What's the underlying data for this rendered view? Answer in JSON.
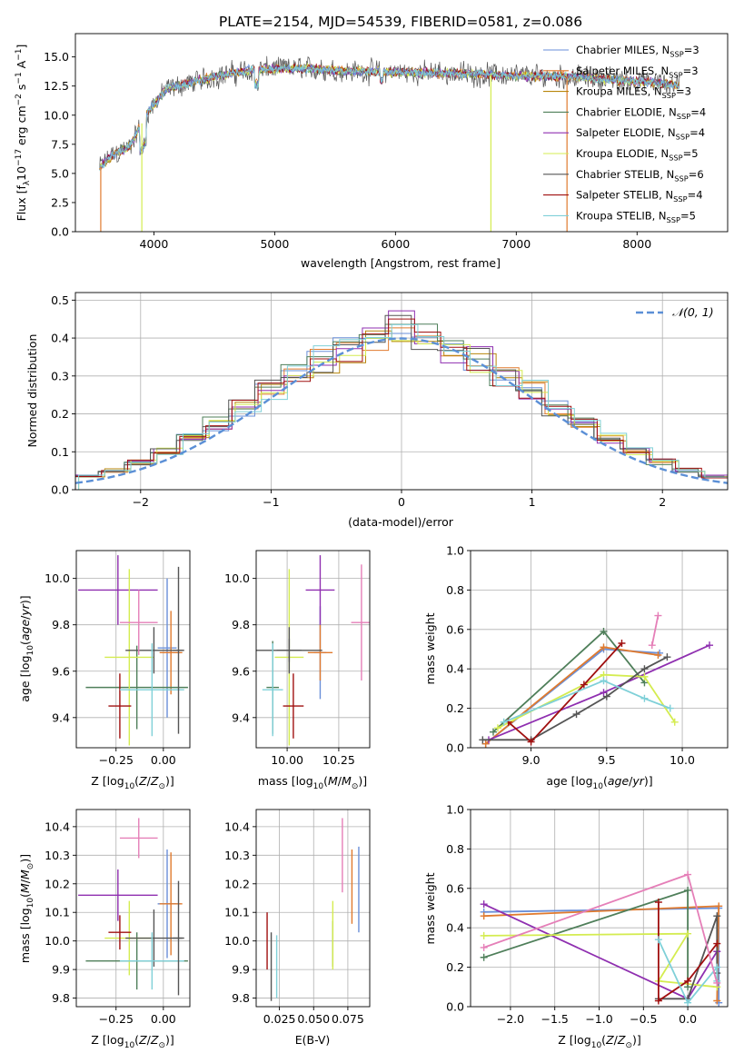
{
  "figure_title": "PLATE=2154, MJD=54539, FIBERID=0581, z=0.086",
  "colors": {
    "Chabrier MILES": "#6a8fd8",
    "Salpeter MILES": "#e07a2e",
    "Kroupa MILES": "#b8860b",
    "Chabrier ELODIE": "#4f7f5a",
    "Salpeter ELODIE": "#8f2fb0",
    "Kroupa ELODIE": "#d4ec50",
    "Chabrier STELIB": "#555555",
    "Salpeter STELIB": "#a01010",
    "Kroupa STELIB": "#7fd0d8",
    "Extra": "#e57fb8"
  },
  "chart_data": [
    {
      "id": "spectrum",
      "type": "line",
      "title": "PLATE=2154, MJD=54539, FIBERID=0581, z=0.086",
      "xlabel": "wavelength [Angstrom, rest frame]",
      "ylabel": "Flux [f",
      "ylabel_parts": [
        "Flux [f",
        "λ",
        "10",
        "−17",
        " erg cm",
        "−2",
        " s",
        "−1",
        " A",
        "−1",
        "]"
      ],
      "xlim": [
        3350,
        8750
      ],
      "ylim": [
        0,
        17
      ],
      "xticks": [
        4000,
        5000,
        6000,
        7000,
        8000
      ],
      "yticks": [
        0.0,
        2.5,
        5.0,
        7.5,
        10.0,
        12.5,
        15.0
      ],
      "ytick_labels": [
        "0.0",
        "2.5",
        "5.0",
        "7.5",
        "10.0",
        "12.5",
        "15.0"
      ],
      "continuum_anchor_wavelength": [
        3550,
        3650,
        3800,
        3950,
        4100,
        4300,
        4500,
        4700,
        5000,
        5300,
        5600,
        6000,
        6500,
        7000,
        7500,
        8000,
        8350
      ],
      "continuum_anchor_flux": [
        5.5,
        6.5,
        7.3,
        10.3,
        12.2,
        12.8,
        13.3,
        13.7,
        14.0,
        14.0,
        13.8,
        13.7,
        13.6,
        13.4,
        13.3,
        12.9,
        12.6
      ],
      "legend_position": "upper-right",
      "legend": [
        {
          "name": "Chabrier MILES",
          "label": "Chabrier MILES, N",
          "nssp": "=3"
        },
        {
          "name": "Salpeter MILES",
          "label": "Salpeter MILES, N",
          "nssp": "=3"
        },
        {
          "name": "Kroupa MILES",
          "label": "Kroupa MILES, N",
          "nssp": "=3"
        },
        {
          "name": "Chabrier ELODIE",
          "label": "Chabrier ELODIE, N",
          "nssp": "=4"
        },
        {
          "name": "Salpeter ELODIE",
          "label": "Salpeter ELODIE, N",
          "nssp": "=4"
        },
        {
          "name": "Kroupa ELODIE",
          "label": "Kroupa ELODIE, N",
          "nssp": "=5"
        },
        {
          "name": "Chabrier STELIB",
          "label": "Chabrier STELIB, N",
          "nssp": "=6"
        },
        {
          "name": "Salpeter STELIB",
          "label": "Salpeter STELIB, N",
          "nssp": "=4"
        },
        {
          "name": "Kroupa STELIB",
          "label": "Kroupa STELIB, N",
          "nssp": "=5"
        }
      ],
      "legend_subscript": "SSP",
      "dropouts": [
        {
          "series": "Salpeter MILES",
          "x": 3560
        },
        {
          "series": "Kroupa ELODIE",
          "x": 3900
        },
        {
          "series": "Kroupa ELODIE",
          "x": 6790
        },
        {
          "series": "Salpeter MILES",
          "x": 7420
        }
      ]
    },
    {
      "id": "residuals",
      "type": "line",
      "xlabel": "(data-model)/error",
      "ylabel": "Normed distribution",
      "xlim": [
        -2.5,
        2.5
      ],
      "ylim": [
        0,
        0.52
      ],
      "xticks": [
        -2,
        -1,
        0,
        1,
        2
      ],
      "xtick_labels": [
        "−2",
        "−1",
        "0",
        "1",
        "2"
      ],
      "yticks": [
        0.0,
        0.1,
        0.2,
        0.3,
        0.4,
        0.5
      ],
      "ytick_labels": [
        "0.0",
        "0.1",
        "0.2",
        "0.3",
        "0.4",
        "0.5"
      ],
      "bin_edges": [
        -2.5,
        -2.3,
        -2.1,
        -1.9,
        -1.7,
        -1.5,
        -1.3,
        -1.1,
        -0.9,
        -0.7,
        -0.5,
        -0.3,
        -0.1,
        0.1,
        0.3,
        0.5,
        0.7,
        0.9,
        1.1,
        1.3,
        1.5,
        1.7,
        1.9,
        2.1,
        2.3,
        2.5
      ],
      "gaussian_label": "𝒩(0, 1)",
      "gaussian": {
        "name": "N(0,1)",
        "mean": 0,
        "sigma": 1
      },
      "legend_position": "upper-right"
    },
    {
      "id": "age_vs_Z",
      "type": "scatter",
      "xlabel": "Z [log",
      "ylabel": "age  [log",
      "xlim": [
        -0.46,
        0.14
      ],
      "ylim": [
        9.27,
        10.12
      ],
      "xticks": [
        -0.25,
        0.0
      ],
      "xtick_labels": [
        "−0.25",
        "0.00"
      ],
      "yticks": [
        9.4,
        9.6,
        9.8,
        10.0
      ],
      "ytick_labels": [
        "9.4",
        "9.6",
        "9.8",
        "10.0"
      ],
      "points": [
        {
          "series": "Chabrier MILES",
          "x": 0.02,
          "y": 9.7,
          "xerr": 0.05,
          "yerr": 0.3
        },
        {
          "series": "Salpeter MILES",
          "x": 0.04,
          "y": 9.68,
          "xerr": 0.06,
          "yerr": 0.18
        },
        {
          "series": "Chabrier ELODIE",
          "x": -0.14,
          "y": 9.53,
          "xerr": 0.27,
          "yerr": 0.18
        },
        {
          "series": "Salpeter ELODIE",
          "x": -0.24,
          "y": 9.95,
          "xerr": 0.21,
          "yerr": 0.15
        },
        {
          "series": "Kroupa ELODIE",
          "x": -0.18,
          "y": 9.66,
          "xerr": 0.13,
          "yerr": 0.38
        },
        {
          "series": "Chabrier STELIB",
          "x": -0.05,
          "y": 9.69,
          "xerr": 0.15,
          "yerr": 0.1
        },
        {
          "series": "Salpeter STELIB",
          "x": -0.23,
          "y": 9.45,
          "xerr": 0.06,
          "yerr": 0.14
        },
        {
          "series": "Kroupa STELIB",
          "x": -0.06,
          "y": 9.52,
          "xerr": 0.17,
          "yerr": 0.2
        },
        {
          "series": "Extra",
          "x": -0.13,
          "y": 9.81,
          "xerr": 0.1,
          "yerr": 0.14
        },
        {
          "series": "Chabrier STELIB",
          "x": 0.08,
          "y": 9.69,
          "xerr": 0.03,
          "yerr": 0.36
        }
      ]
    },
    {
      "id": "age_vs_mass",
      "type": "scatter",
      "xlabel": "mass [log",
      "xlim": [
        9.85,
        10.4
      ],
      "ylim": [
        9.27,
        10.12
      ],
      "xticks": [
        10.0,
        10.25
      ],
      "xtick_labels": [
        "10.00",
        "10.25"
      ],
      "yticks": [
        9.4,
        9.6,
        9.8,
        10.0
      ],
      "ytick_labels": [
        "9.4",
        "9.6",
        "9.8",
        "10.0"
      ],
      "points": [
        {
          "series": "Chabrier MILES",
          "x": 10.16,
          "y": 9.68,
          "xerr": 0.03,
          "yerr": 0.2
        },
        {
          "series": "Salpeter MILES",
          "x": 10.16,
          "y": 9.68,
          "xerr": 0.06,
          "yerr": 0.12
        },
        {
          "series": "Chabrier ELODIE",
          "x": 9.93,
          "y": 9.53,
          "xerr": 0.03,
          "yerr": 0.2
        },
        {
          "series": "Salpeter ELODIE",
          "x": 10.16,
          "y": 9.95,
          "xerr": 0.07,
          "yerr": 0.15
        },
        {
          "series": "Kroupa ELODIE",
          "x": 10.01,
          "y": 9.66,
          "xerr": 0.07,
          "yerr": 0.38
        },
        {
          "series": "Chabrier STELIB",
          "x": 10.01,
          "y": 9.69,
          "xerr": 0.16,
          "yerr": 0.1
        },
        {
          "series": "Salpeter STELIB",
          "x": 10.03,
          "y": 9.45,
          "xerr": 0.05,
          "yerr": 0.14
        },
        {
          "series": "Kroupa STELIB",
          "x": 9.93,
          "y": 9.52,
          "xerr": 0.05,
          "yerr": 0.2
        },
        {
          "series": "Extra",
          "x": 10.36,
          "y": 9.81,
          "xerr": 0.05,
          "yerr": 0.25
        },
        {
          "series": "Chabrier STELIB",
          "x": 10.01,
          "y": 9.69,
          "xerr": 0.06,
          "yerr": 0.05
        }
      ]
    },
    {
      "id": "weight_vs_age",
      "type": "line",
      "xlabel": "age  [log",
      "ylabel": "mass weight",
      "xlim": [
        8.6,
        10.3
      ],
      "ylim": [
        0,
        1
      ],
      "xticks": [
        9.0,
        9.5,
        10.0
      ],
      "xtick_labels": [
        "9.0",
        "9.5",
        "10.0"
      ],
      "yticks": [
        0.0,
        0.2,
        0.4,
        0.6,
        0.8,
        1.0
      ],
      "ytick_labels": [
        "0.0",
        "0.2",
        "0.4",
        "0.6",
        "0.8",
        "1.0"
      ],
      "series": [
        {
          "name": "Chabrier MILES",
          "x": [
            8.7,
            9.48,
            9.85
          ],
          "y": [
            0.02,
            0.5,
            0.48
          ]
        },
        {
          "name": "Salpeter MILES",
          "x": [
            8.7,
            9.48,
            9.84
          ],
          "y": [
            0.02,
            0.51,
            0.47
          ]
        },
        {
          "name": "Chabrier ELODIE",
          "x": [
            8.75,
            9.48,
            9.75
          ],
          "y": [
            0.08,
            0.59,
            0.33
          ]
        },
        {
          "name": "Salpeter ELODIE",
          "x": [
            8.72,
            9.48,
            10.18
          ],
          "y": [
            0.04,
            0.28,
            0.52
          ]
        },
        {
          "name": "Kroupa ELODIE",
          "x": [
            8.78,
            9.48,
            9.75,
            9.95
          ],
          "y": [
            0.1,
            0.37,
            0.36,
            0.13
          ]
        },
        {
          "name": "Chabrier STELIB",
          "x": [
            8.68,
            9.0,
            9.3,
            9.5,
            9.75,
            9.9
          ],
          "y": [
            0.04,
            0.04,
            0.17,
            0.26,
            0.4,
            0.46
          ]
        },
        {
          "name": "Salpeter STELIB",
          "x": [
            8.85,
            9.0,
            9.35,
            9.6
          ],
          "y": [
            0.13,
            0.03,
            0.32,
            0.53
          ]
        },
        {
          "name": "Kroupa STELIB",
          "x": [
            8.82,
            9.48,
            9.75,
            9.92
          ],
          "y": [
            0.13,
            0.34,
            0.25,
            0.2
          ]
        },
        {
          "name": "Extra",
          "x": [
            9.8,
            9.84
          ],
          "y": [
            0.52,
            0.67
          ]
        }
      ]
    },
    {
      "id": "mass_vs_Z",
      "type": "scatter",
      "xlabel": "Z [log",
      "ylabel": "mass [log",
      "xlim": [
        -0.46,
        0.14
      ],
      "ylim": [
        9.77,
        10.46
      ],
      "xticks": [
        -0.25,
        0.0
      ],
      "xtick_labels": [
        "−0.25",
        "0.00"
      ],
      "yticks": [
        9.8,
        9.9,
        10.0,
        10.1,
        10.2,
        10.3,
        10.4
      ],
      "ytick_labels": [
        "9.8",
        "9.9",
        "10.0",
        "10.1",
        "10.2",
        "10.3",
        "10.4"
      ],
      "points": [
        {
          "series": "Chabrier MILES",
          "x": 0.02,
          "y": 10.13,
          "xerr": 0.05,
          "yerr": 0.19
        },
        {
          "series": "Salpeter MILES",
          "x": 0.04,
          "y": 10.13,
          "xerr": 0.06,
          "yerr": 0.18
        },
        {
          "series": "Chabrier ELODIE",
          "x": -0.14,
          "y": 9.93,
          "xerr": 0.27,
          "yerr": 0.1
        },
        {
          "series": "Salpeter ELODIE",
          "x": -0.24,
          "y": 10.16,
          "xerr": 0.21,
          "yerr": 0.09
        },
        {
          "series": "Kroupa ELODIE",
          "x": -0.18,
          "y": 10.01,
          "xerr": 0.13,
          "yerr": 0.13
        },
        {
          "series": "Chabrier STELIB",
          "x": -0.05,
          "y": 10.01,
          "xerr": 0.15,
          "yerr": 0.1
        },
        {
          "series": "Salpeter STELIB",
          "x": -0.23,
          "y": 10.03,
          "xerr": 0.06,
          "yerr": 0.06
        },
        {
          "series": "Kroupa STELIB",
          "x": -0.06,
          "y": 9.93,
          "xerr": 0.17,
          "yerr": 0.1
        },
        {
          "series": "Extra",
          "x": -0.13,
          "y": 10.36,
          "xerr": 0.1,
          "yerr": 0.07
        },
        {
          "series": "Chabrier STELIB",
          "x": 0.08,
          "y": 10.01,
          "xerr": 0.03,
          "yerr": 0.2
        }
      ]
    },
    {
      "id": "mass_vs_EBV",
      "type": "scatter",
      "xlabel": "E(B-V)",
      "xlim": [
        0.008,
        0.091
      ],
      "ylim": [
        9.77,
        10.46
      ],
      "xticks": [
        0.025,
        0.05,
        0.075
      ],
      "xtick_labels": [
        "0.025",
        "0.050",
        "0.075"
      ],
      "yticks": [
        9.8,
        9.9,
        10.0,
        10.1,
        10.2,
        10.3,
        10.4
      ],
      "ytick_labels": [
        "9.8",
        "9.9",
        "10.0",
        "10.1",
        "10.2",
        "10.3",
        "10.4"
      ],
      "points": [
        {
          "series": "Chabrier MILES",
          "x": 0.083,
          "y": 10.18,
          "xerr": 0.0,
          "yerr": 0.15
        },
        {
          "series": "Salpeter MILES",
          "x": 0.078,
          "y": 10.19,
          "xerr": 0.0,
          "yerr": 0.13
        },
        {
          "series": "Chabrier ELODIE",
          "x": 0.064,
          "y": 9.99,
          "xerr": 0.0,
          "yerr": 0.08
        },
        {
          "series": "Salpeter ELODIE",
          "x": 0.078,
          "y": 10.28,
          "xerr": 0.0,
          "yerr": 0.0
        },
        {
          "series": "Kroupa ELODIE",
          "x": 0.064,
          "y": 10.02,
          "xerr": 0.0,
          "yerr": 0.12
        },
        {
          "series": "Chabrier STELIB",
          "x": 0.019,
          "y": 9.91,
          "xerr": 0.0,
          "yerr": 0.12
        },
        {
          "series": "Salpeter STELIB",
          "x": 0.016,
          "y": 10.0,
          "xerr": 0.0,
          "yerr": 0.1
        },
        {
          "series": "Kroupa STELIB",
          "x": 0.023,
          "y": 9.91,
          "xerr": 0.0,
          "yerr": 0.11
        },
        {
          "series": "Extra",
          "x": 0.071,
          "y": 10.3,
          "xerr": 0.0,
          "yerr": 0.13
        }
      ]
    },
    {
      "id": "weight_vs_Z",
      "type": "line",
      "xlabel": "Z [log",
      "ylabel": "mass weight",
      "xlim": [
        -2.45,
        0.45
      ],
      "ylim": [
        0,
        1
      ],
      "xticks": [
        -2.0,
        -1.5,
        -1.0,
        -0.5,
        0.0
      ],
      "xtick_labels": [
        "−2.0",
        "−1.5",
        "−1.0",
        "−0.5",
        "0.0"
      ],
      "yticks": [
        0.0,
        0.2,
        0.4,
        0.6,
        0.8,
        1.0
      ],
      "ytick_labels": [
        "0.0",
        "0.2",
        "0.4",
        "0.6",
        "0.8",
        "1.0"
      ],
      "series": [
        {
          "name": "Chabrier MILES",
          "x": [
            -2.3,
            0.35,
            0.35
          ],
          "y": [
            0.48,
            0.5,
            0.02
          ]
        },
        {
          "name": "Salpeter MILES",
          "x": [
            -2.3,
            0.35,
            0.33
          ],
          "y": [
            0.46,
            0.51,
            0.03
          ]
        },
        {
          "name": "Chabrier ELODIE",
          "x": [
            -2.3,
            0.0,
            0.0
          ],
          "y": [
            0.25,
            0.59,
            0.1
          ]
        },
        {
          "name": "Salpeter ELODIE",
          "x": [
            -2.3,
            0.0,
            0.33
          ],
          "y": [
            0.52,
            0.04,
            0.28
          ]
        },
        {
          "name": "Kroupa ELODIE",
          "x": [
            -2.3,
            0.0,
            -0.33,
            0.33
          ],
          "y": [
            0.36,
            0.37,
            0.13,
            0.1
          ]
        },
        {
          "name": "Chabrier STELIB",
          "x": [
            -0.33,
            0.0,
            0.33,
            0.33
          ],
          "y": [
            0.04,
            0.04,
            0.46,
            0.17
          ]
        },
        {
          "name": "Salpeter STELIB",
          "x": [
            -0.33,
            -0.33,
            0.0,
            0.33
          ],
          "y": [
            0.53,
            0.03,
            0.13,
            0.32
          ]
        },
        {
          "name": "Kroupa STELIB",
          "x": [
            -0.33,
            0.0,
            0.33,
            0.33
          ],
          "y": [
            0.34,
            0.02,
            0.2,
            0.13
          ]
        },
        {
          "name": "Extra",
          "x": [
            -2.3,
            0.0,
            0.33
          ],
          "y": [
            0.3,
            0.67,
            0.12
          ]
        }
      ]
    }
  ]
}
